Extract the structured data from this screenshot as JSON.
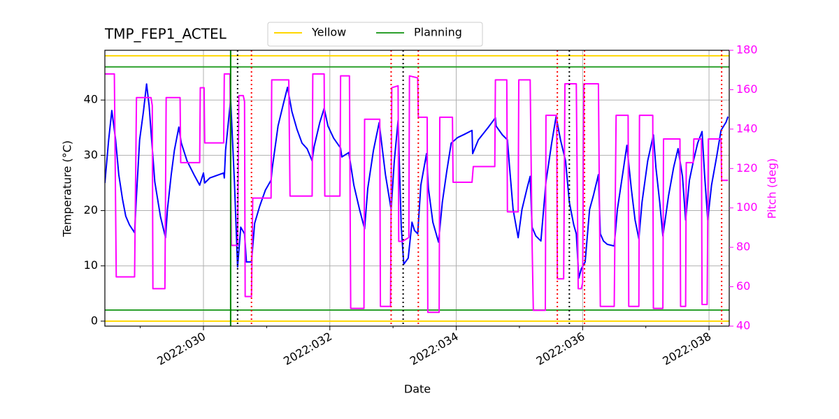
{
  "chart_data": {
    "type": "line",
    "title": "TMP_FEP1_ACTEL",
    "x_label": "Date",
    "y_label": "Temperature (°C)",
    "y2_label": "Pitch (deg)",
    "y2_color": "#ff00ff",
    "grid": true,
    "legend": "upper center",
    "xlim": [
      28.44,
      38.32
    ],
    "xticks": [
      {
        "value": 30,
        "label": "2022:030"
      },
      {
        "value": 32,
        "label": "2022:032"
      },
      {
        "value": 34,
        "label": "2022:034"
      },
      {
        "value": 36,
        "label": "2022:036"
      },
      {
        "value": 38,
        "label": "2022:038"
      }
    ],
    "xminorticks": [
      29,
      31,
      33,
      35,
      37
    ],
    "ylim": [
      -0.9,
      49
    ],
    "yticks": [
      0,
      10,
      20,
      30,
      40
    ],
    "y2lim": [
      40,
      180
    ],
    "y2ticks": [
      40,
      60,
      80,
      100,
      120,
      140,
      160,
      180
    ],
    "hlines": [
      {
        "name": "Yellow",
        "color": "#ffd700",
        "values": [
          48,
          0
        ]
      },
      {
        "name": "Planning",
        "color": "#2ca02c",
        "values": [
          46,
          2
        ]
      }
    ],
    "vlines": [
      {
        "color": "#008000",
        "style": "solid",
        "values": [
          30.43
        ]
      },
      {
        "color": "#000000",
        "style": "dotted",
        "values": [
          30.54,
          33.16,
          35.79
        ]
      },
      {
        "color": "#ff0000",
        "style": "dotted",
        "values": [
          30.76,
          32.97,
          33.4,
          35.6,
          36.03,
          38.2
        ]
      }
    ],
    "series": [
      {
        "color": "#0000ff",
        "x": [
          28.44,
          28.5,
          28.55,
          28.61,
          28.66,
          28.72,
          28.77,
          28.83,
          28.91,
          28.94,
          28.99,
          29.05,
          29.1,
          29.14,
          29.18,
          29.23,
          29.32,
          29.4,
          29.43,
          29.49,
          29.54,
          29.61,
          29.65,
          29.74,
          29.85,
          29.94,
          30.0,
          30.02,
          30.1,
          30.32,
          30.33,
          30.35,
          30.43,
          30.49,
          30.54,
          30.59,
          30.65,
          30.68,
          30.76,
          30.81,
          30.89,
          30.98,
          31.07,
          31.09,
          31.18,
          31.26,
          31.33,
          31.4,
          31.48,
          31.56,
          31.64,
          31.72,
          31.75,
          31.84,
          31.91,
          31.97,
          32.06,
          32.17,
          32.19,
          32.3,
          32.38,
          32.47,
          32.55,
          32.6,
          32.69,
          32.78,
          32.88,
          32.97,
          33.02,
          33.08,
          33.13,
          33.17,
          33.24,
          33.3,
          33.34,
          33.39,
          33.44,
          33.53,
          33.56,
          33.63,
          33.72,
          33.78,
          33.85,
          33.92,
          34.02,
          34.13,
          34.25,
          34.26,
          34.35,
          34.51,
          34.62,
          34.63,
          34.73,
          34.81,
          34.84,
          34.9,
          34.98,
          35.04,
          35.12,
          35.17,
          35.2,
          35.26,
          35.34,
          35.42,
          35.51,
          35.58,
          35.65,
          35.73,
          35.79,
          35.86,
          35.9,
          35.94,
          35.98,
          36.04,
          36.11,
          36.17,
          36.25,
          36.28,
          36.33,
          36.39,
          36.5,
          36.55,
          36.64,
          36.7,
          36.77,
          36.83,
          36.89,
          36.94,
          37.03,
          37.12,
          37.16,
          37.22,
          37.27,
          37.36,
          37.44,
          37.51,
          37.58,
          37.63,
          37.69,
          37.75,
          37.82,
          37.89,
          37.93,
          37.98,
          38.04,
          38.12,
          38.19,
          38.27,
          38.3
        ],
        "values": [
          25.0,
          32.8,
          38.1,
          32.8,
          26.5,
          22.0,
          19.0,
          17.4,
          16.0,
          22.7,
          32.8,
          37.9,
          42.9,
          39.0,
          32.8,
          25.2,
          18.9,
          15.1,
          20.2,
          26.5,
          30.9,
          35.1,
          32.2,
          29.0,
          26.5,
          24.6,
          26.8,
          25.0,
          25.9,
          26.8,
          25.9,
          30.9,
          40.1,
          25.2,
          9.8,
          17.0,
          15.8,
          10.7,
          10.7,
          17.7,
          20.8,
          23.7,
          25.5,
          27.8,
          35.3,
          39.1,
          42.3,
          37.9,
          34.7,
          32.2,
          31.2,
          29.0,
          31.5,
          35.9,
          38.5,
          35.3,
          33.1,
          31.3,
          29.7,
          30.5,
          24.6,
          20.2,
          16.7,
          24.0,
          30.9,
          35.9,
          26.5,
          20.2,
          29.0,
          36.3,
          17.0,
          10.3,
          11.4,
          17.9,
          16.4,
          15.8,
          24.6,
          30.3,
          24.0,
          17.9,
          14.3,
          21.5,
          27.1,
          32.2,
          33.2,
          33.8,
          34.5,
          30.3,
          32.8,
          35.1,
          36.8,
          35.3,
          33.7,
          32.8,
          28.4,
          20.2,
          15.1,
          20.2,
          24.0,
          26.2,
          17.0,
          15.4,
          14.5,
          25.2,
          32.2,
          37.0,
          32.8,
          29.0,
          21.5,
          17.4,
          15.8,
          7.8,
          9.5,
          10.7,
          20.2,
          22.7,
          26.5,
          15.8,
          14.5,
          13.9,
          13.6,
          20.2,
          27.1,
          31.8,
          24.0,
          18.3,
          14.9,
          21.5,
          29.0,
          33.7,
          27.8,
          21.5,
          15.4,
          22.7,
          27.8,
          31.2,
          26.2,
          18.3,
          25.5,
          28.8,
          32.2,
          34.3,
          26.5,
          18.3,
          24.6,
          29.7,
          34.5,
          36.0,
          37.0
        ]
      },
      {
        "color": "#ff00ff",
        "axis": "y2",
        "x": [
          28.44,
          28.58,
          28.59,
          28.62,
          28.91,
          28.94,
          29.17,
          29.19,
          29.2,
          29.39,
          29.41,
          29.63,
          29.64,
          29.94,
          29.95,
          30.01,
          30.02,
          30.32,
          30.33,
          30.42,
          30.44,
          30.54,
          30.56,
          30.63,
          30.65,
          30.66,
          30.76,
          30.78,
          31.07,
          31.08,
          31.35,
          31.37,
          31.72,
          31.73,
          31.91,
          31.92,
          32.16,
          32.17,
          32.31,
          32.33,
          32.54,
          32.55,
          32.79,
          32.8,
          32.96,
          32.98,
          33.08,
          33.09,
          33.15,
          33.25,
          33.26,
          33.39,
          33.4,
          33.54,
          33.55,
          33.73,
          33.74,
          33.94,
          33.95,
          34.25,
          34.27,
          34.61,
          34.62,
          34.8,
          34.81,
          34.98,
          34.99,
          35.17,
          35.2,
          35.22,
          35.41,
          35.42,
          35.59,
          35.6,
          35.7,
          35.72,
          35.9,
          35.93,
          35.98,
          36.0,
          36.02,
          36.25,
          36.28,
          36.5,
          36.53,
          36.72,
          36.73,
          36.89,
          36.9,
          37.11,
          37.12,
          37.27,
          37.28,
          37.54,
          37.55,
          37.63,
          37.64,
          37.75,
          37.76,
          37.88,
          37.89,
          37.97,
          37.99,
          38.19,
          38.2,
          38.3
        ],
        "values": [
          168,
          168,
          168,
          65,
          65,
          156,
          156,
          152,
          59,
          59,
          156,
          156,
          123,
          123,
          161,
          161,
          133,
          133,
          168,
          168,
          81,
          81,
          157,
          157,
          154,
          55,
          55,
          105,
          105,
          165,
          165,
          106,
          106,
          168,
          168,
          106,
          106,
          167,
          167,
          49,
          49,
          145,
          145,
          50,
          50,
          161,
          162,
          83,
          83,
          85,
          167,
          166,
          146,
          146,
          47,
          47,
          146,
          146,
          113,
          113,
          121,
          121,
          165,
          165,
          98,
          98,
          165,
          165,
          83,
          48,
          48,
          147,
          147,
          64,
          64,
          163,
          163,
          59,
          59,
          62,
          163,
          163,
          50,
          50,
          147,
          147,
          50,
          50,
          147,
          147,
          49,
          49,
          135,
          135,
          50,
          50,
          123,
          123,
          135,
          135,
          51,
          51,
          135,
          135,
          114,
          114
        ]
      }
    ]
  }
}
